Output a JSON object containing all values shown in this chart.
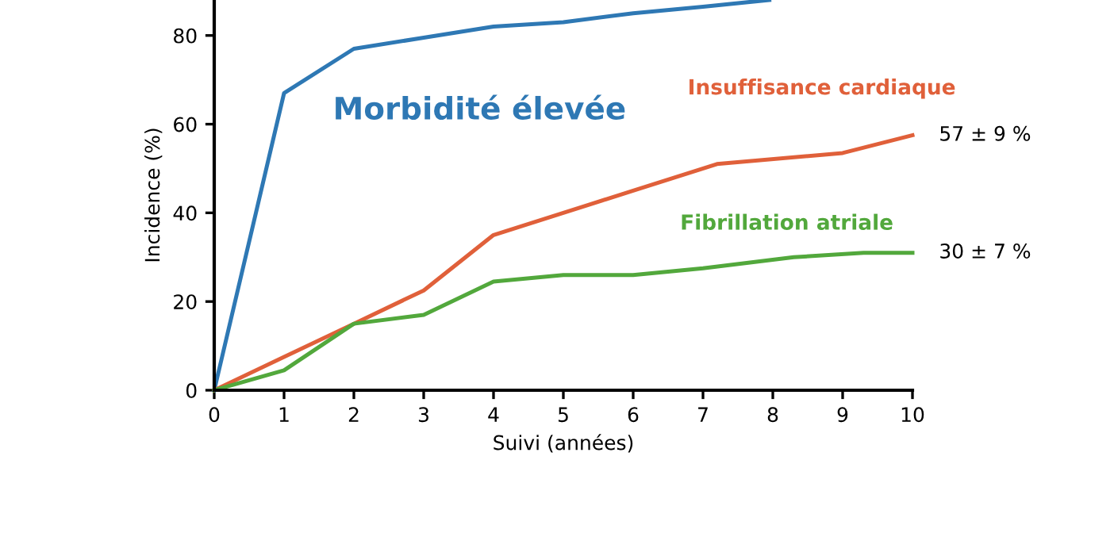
{
  "chart_data": {
    "type": "line",
    "xlabel": "Suivi (années)",
    "ylabel": "Incidence (%)",
    "xlim": [
      0,
      10
    ],
    "ylim": [
      0,
      88
    ],
    "xticks": [
      0,
      1,
      2,
      3,
      4,
      5,
      6,
      7,
      8,
      9,
      10
    ],
    "yticks": [
      0,
      20,
      40,
      60,
      80
    ],
    "grid": false,
    "legend": false,
    "marker": "none",
    "line_style": "solid",
    "series": [
      {
        "name": "Morbidité élevée",
        "color": "#2e78b4",
        "x": [
          0,
          1,
          2,
          3,
          4,
          5,
          6,
          7,
          7.95
        ],
        "values": [
          0,
          67,
          77,
          79.5,
          82,
          83,
          85,
          86.5,
          88
        ]
      },
      {
        "name": "Insuffisance cardiaque",
        "color": "#e0603a",
        "x": [
          0,
          1,
          2,
          3,
          4,
          5,
          6,
          7.2,
          9,
          10
        ],
        "values": [
          0,
          7.5,
          15,
          22.5,
          35,
          40,
          45,
          51,
          53.5,
          57.5
        ]
      },
      {
        "name": "Fibrillation atriale",
        "color": "#52a83c",
        "x": [
          0,
          1,
          2,
          3,
          4,
          5,
          6,
          7,
          8.3,
          9.3,
          10
        ],
        "values": [
          0,
          4.5,
          15,
          17,
          24.5,
          26,
          26,
          27.5,
          30,
          31,
          31
        ]
      }
    ],
    "annotations": [
      {
        "text": "57 ± 9 %",
        "x": 10,
        "y": 57.5
      },
      {
        "text": "30 ± 7 %",
        "x": 10,
        "y": 31
      }
    ]
  }
}
